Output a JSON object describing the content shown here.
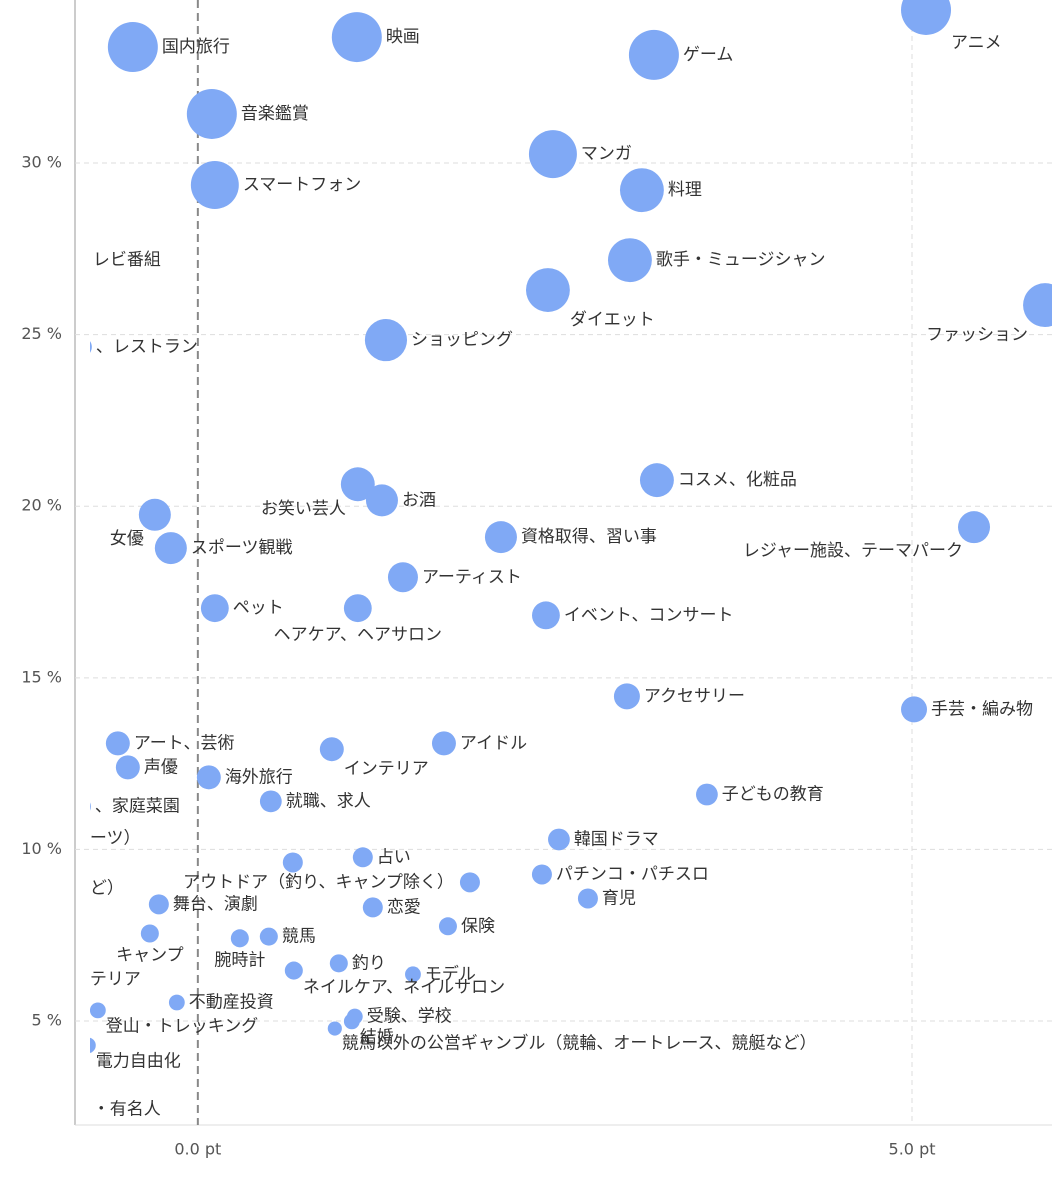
{
  "chart_data": {
    "type": "scatter",
    "color": "#80a9f5",
    "grid": true,
    "xlim": [
      -0.86,
      5.98
    ],
    "ylim": [
      1.97,
      34.75
    ],
    "xticks": [
      {
        "value": 0,
        "label": "0.0 pt"
      },
      {
        "value": 5,
        "label": "5.0 pt"
      }
    ],
    "yticks": [
      {
        "value": 5,
        "label": "5 %"
      },
      {
        "value": 10,
        "label": "10 %"
      },
      {
        "value": 15,
        "label": "15 %"
      },
      {
        "value": 20,
        "label": "20 %"
      },
      {
        "value": 25,
        "label": "25 %"
      },
      {
        "value": 30,
        "label": "30 %"
      }
    ],
    "labels": [
      "国内旅行",
      "映画",
      "ゲーム",
      "アニメ",
      "音楽鑑賞",
      "マンガ",
      "スマートフォン",
      "料理",
      "レビ番組",
      "歌手・ミュージシャン",
      "ダイエット",
      "ファッション",
      "ショッピング",
      "、レストラン",
      "コスメ、化粧品",
      "お笑い芸人",
      "お酒",
      "女優",
      "スポーツ観戦",
      "資格取得、習い事",
      "レジャー施設、テーマパーク",
      "アーティスト",
      "ペット",
      "ヘアケア、ヘアサロン",
      "イベント、コンサート",
      "アクセサリー",
      "手芸・編み物",
      "アート、芸術",
      "声優",
      "インテリア",
      "アイドル",
      "海外旅行",
      "就職、求人",
      "子どもの教育",
      "、家庭菜園",
      "ーツ）",
      "韓国ドラマ",
      "占い",
      null,
      "アウトドア（釣り、キャンプ除く）",
      "パチンコ・パチスロ",
      "ど）",
      "舞台、演劇",
      "恋愛",
      "育児",
      "保険",
      "キャンプ",
      "腕時計",
      "競馬",
      "テリア",
      "ネイルケア、ネイルサロン",
      "釣り",
      "モデル",
      "不動産投資",
      "登山・トレッキング",
      "受験、学校",
      "結婚",
      "競馬以外の公営ギャンブル（競輪、オートレース、競艇など）",
      "電力自由化",
      "・有名人"
    ],
    "x": [
      -0.455,
      1.113,
      3.193,
      5.098,
      0.098,
      2.486,
      0.119,
      3.109,
      -0.833,
      3.025,
      2.451,
      5.931,
      1.317,
      -0.812,
      3.214,
      1.12,
      1.289,
      -0.301,
      -0.189,
      2.122,
      5.434,
      1.436,
      0.119,
      1.12,
      2.437,
      3.004,
      5.014,
      -0.56,
      -0.49,
      0.938,
      1.723,
      0.077,
      0.511,
      3.564,
      -0.819,
      -0.854,
      2.528,
      1.155,
      0.665,
      1.905,
      2.409,
      -0.854,
      -0.273,
      1.225,
      2.731,
      1.751,
      -0.336,
      0.294,
      0.497,
      -0.854,
      0.672,
      0.987,
      1.506,
      -0.147,
      -0.7,
      1.099,
      1.078,
      0.959,
      -0.77,
      -0.819
    ],
    "values": [
      33.38,
      33.67,
      33.15,
      34.46,
      31.43,
      30.26,
      29.36,
      29.21,
      27.17,
      27.17,
      26.3,
      25.86,
      24.84,
      24.64,
      20.76,
      20.64,
      20.17,
      19.75,
      18.78,
      19.1,
      19.39,
      17.93,
      17.03,
      17.03,
      16.82,
      14.46,
      14.08,
      13.09,
      12.39,
      12.92,
      13.09,
      12.1,
      11.4,
      11.6,
      11.25,
      10.32,
      10.29,
      9.77,
      9.62,
      9.04,
      9.27,
      8.86,
      8.4,
      8.31,
      8.57,
      7.76,
      7.55,
      7.41,
      7.46,
      6.21,
      6.47,
      6.68,
      6.36,
      5.54,
      5.31,
      5.13,
      4.99,
      4.78,
      4.29,
      2.42
    ],
    "sizes": [
      100,
      100,
      100,
      100,
      100,
      92,
      92,
      77,
      16,
      77,
      77,
      77,
      71,
      16,
      46,
      46,
      41,
      41,
      41,
      41,
      41,
      36,
      31,
      31,
      31,
      27,
      27,
      23,
      23,
      23,
      23,
      23,
      19,
      19,
      16,
      16,
      19,
      16,
      16,
      16,
      16,
      16,
      16,
      16,
      16,
      13,
      13,
      13,
      13,
      16,
      13,
      13,
      10,
      10,
      10,
      10,
      10,
      8,
      10,
      10
    ]
  }
}
